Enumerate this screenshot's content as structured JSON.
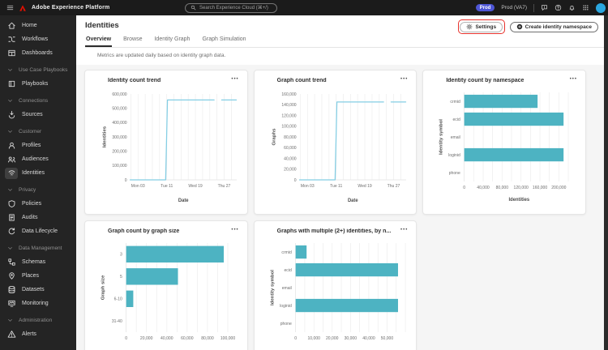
{
  "topbar": {
    "app_title": "Adobe Experience Platform",
    "search_placeholder": "Search Experience Cloud (⌘+/)",
    "env_badge": "Prod",
    "env_label": "Prod (VA7)"
  },
  "sidebar": {
    "items": [
      {
        "kind": "item",
        "label": "Home",
        "icon": "home"
      },
      {
        "kind": "item",
        "label": "Workflows",
        "icon": "workflows"
      },
      {
        "kind": "item",
        "label": "Dashboards",
        "icon": "dashboards"
      },
      {
        "kind": "section",
        "label": "Use Case Playbooks",
        "icon": "chevron"
      },
      {
        "kind": "item",
        "label": "Playbooks",
        "icon": "playbooks"
      },
      {
        "kind": "section",
        "label": "Connections",
        "icon": "chevron"
      },
      {
        "kind": "item",
        "label": "Sources",
        "icon": "sources"
      },
      {
        "kind": "section",
        "label": "Customer",
        "icon": "chevron"
      },
      {
        "kind": "item",
        "label": "Profiles",
        "icon": "profiles"
      },
      {
        "kind": "item",
        "label": "Audiences",
        "icon": "audiences"
      },
      {
        "kind": "item",
        "label": "Identities",
        "icon": "identities",
        "selected": true
      },
      {
        "kind": "section",
        "label": "Privacy",
        "icon": "chevron"
      },
      {
        "kind": "item",
        "label": "Policies",
        "icon": "policies"
      },
      {
        "kind": "item",
        "label": "Audits",
        "icon": "audits"
      },
      {
        "kind": "item",
        "label": "Data Lifecycle",
        "icon": "lifecycle"
      },
      {
        "kind": "section",
        "label": "Data Management",
        "icon": "chevron"
      },
      {
        "kind": "item",
        "label": "Schemas",
        "icon": "schemas"
      },
      {
        "kind": "item",
        "label": "Places",
        "icon": "places"
      },
      {
        "kind": "item",
        "label": "Datasets",
        "icon": "datasets"
      },
      {
        "kind": "item",
        "label": "Monitoring",
        "icon": "monitoring"
      },
      {
        "kind": "section",
        "label": "Administration",
        "icon": "chevron"
      },
      {
        "kind": "item",
        "label": "Alerts",
        "icon": "alerts"
      }
    ]
  },
  "page": {
    "title": "Identities",
    "tabs": [
      {
        "label": "Overview",
        "active": true
      },
      {
        "label": "Browse",
        "active": false
      },
      {
        "label": "Identity Graph",
        "active": false
      },
      {
        "label": "Graph Simulation",
        "active": false
      }
    ],
    "note": "Metrics are updated daily based on identity graph data.",
    "settings_button": "Settings",
    "create_button": "Create identity namespace"
  },
  "icons": {
    "more_actions": "•••"
  },
  "ui_colors": {
    "accent_teal": "#4db3c2",
    "line_blue": "#84cee4",
    "annotation_red": "#e8322c",
    "env_badge_blue": "#4e56d6",
    "avatar_blue": "#2ba7e0"
  },
  "chart_data": [
    {
      "name": "identity-count-trend",
      "type": "line",
      "title": "Identity count trend",
      "xlabel": "Date",
      "ylabel": "Identities",
      "ylim": [
        0,
        600000
      ],
      "ytick_step": 100000,
      "xdomain": [
        0.8,
        30.5
      ],
      "grid_day_step": 2,
      "xticks": [
        {
          "v": 3,
          "label": "Mon 03"
        },
        {
          "v": 11,
          "label": "Tue 11"
        },
        {
          "v": 19,
          "label": "Wed 19"
        },
        {
          "v": 27,
          "label": "Thu 27"
        }
      ],
      "series": [
        {
          "name": "Identities",
          "color": "#84cee4",
          "segments": [
            [
              [
                0.8,
                0
              ],
              [
                10.7,
                0
              ],
              [
                11.2,
                558000
              ],
              [
                24.2,
                558000
              ]
            ],
            [
              [
                26.3,
                558000
              ],
              [
                30.4,
                558000
              ]
            ]
          ]
        }
      ]
    },
    {
      "name": "graph-count-trend",
      "type": "line",
      "title": "Graph count trend",
      "xlabel": "Date",
      "ylabel": "Graphs",
      "ylim": [
        0,
        160000
      ],
      "ytick_step": 20000,
      "xdomain": [
        0.8,
        30.5
      ],
      "grid_day_step": 2,
      "xticks": [
        {
          "v": 3,
          "label": "Mon 03"
        },
        {
          "v": 11,
          "label": "Tue 11"
        },
        {
          "v": 19,
          "label": "Wed 19"
        },
        {
          "v": 27,
          "label": "Thu 27"
        }
      ],
      "series": [
        {
          "name": "Graphs",
          "color": "#84cee4",
          "segments": [
            [
              [
                0.8,
                0
              ],
              [
                10.7,
                0
              ],
              [
                11.2,
                145000
              ],
              [
                24.2,
                145000
              ]
            ],
            [
              [
                26.3,
                145000
              ],
              [
                30.4,
                145000
              ]
            ]
          ]
        }
      ]
    },
    {
      "name": "identity-count-by-namespace",
      "type": "bar",
      "title": "Identity count by namespace",
      "xlabel": "Identities",
      "ylabel": "Identity symbol",
      "categories": [
        "crmid",
        "ecid",
        "email",
        "loginid",
        "phone"
      ],
      "values": [
        155000,
        210000,
        0,
        210000,
        0
      ],
      "xlim": [
        0,
        232000
      ],
      "xtick_step": 40000,
      "xticks_to": 200000,
      "grid_step": 20000,
      "color": "#4db3c2"
    },
    {
      "name": "graph-count-by-graph-size",
      "type": "bar",
      "title": "Graph count by graph size",
      "xlabel": "",
      "ylabel": "Graph size",
      "categories": [
        "3",
        "5",
        "6-10",
        "31-40"
      ],
      "values": [
        96000,
        51000,
        7000,
        0
      ],
      "xlim": [
        0,
        108000
      ],
      "xtick_step": 20000,
      "xticks_to": 100000,
      "grid_step": 10000,
      "color": "#4db3c2"
    },
    {
      "name": "graphs-with-multiple-identities-by-namespace",
      "type": "bar",
      "title": "Graphs with multiple (2+) identities, by n...",
      "xlabel": "",
      "ylabel": "Identity symbol",
      "categories": [
        "crmid",
        "ecid",
        "email",
        "loginid",
        "phone"
      ],
      "values": [
        6000,
        56000,
        0,
        56000,
        0
      ],
      "xlim": [
        0,
        60000
      ],
      "xtick_step": 10000,
      "xticks_to": 50000,
      "grid_step": 5000,
      "color": "#4db3c2"
    }
  ]
}
